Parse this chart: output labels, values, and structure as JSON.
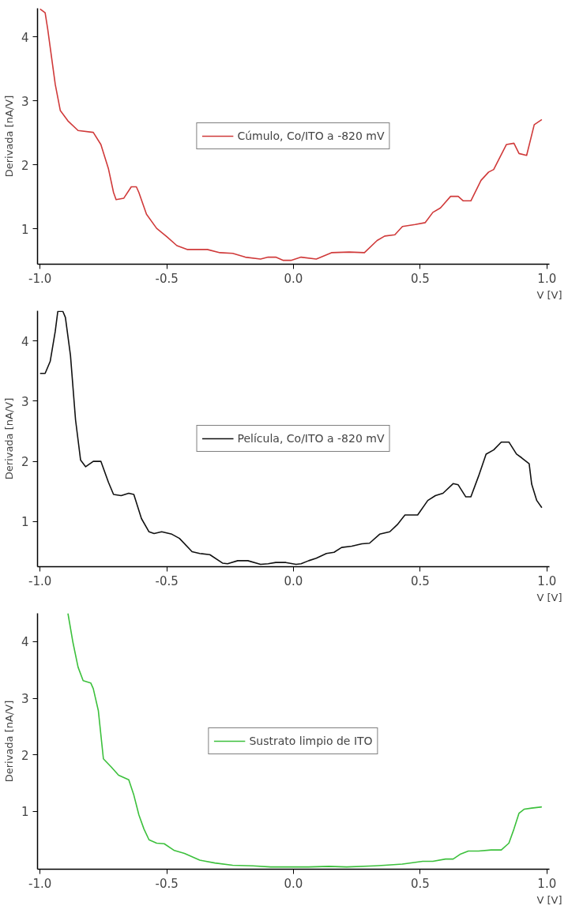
{
  "chart_data": [
    {
      "type": "line",
      "xlabel": "V [V]",
      "ylabel": "Derivada [nA/V]",
      "xlim": [
        -1.01,
        1.01
      ],
      "ylim": [
        0.45,
        4.45
      ],
      "xticks": [
        {
          "value": -1,
          "label": "-1.0"
        },
        {
          "value": -0.5,
          "label": "-0.5"
        },
        {
          "value": 0,
          "label": "0.0"
        },
        {
          "value": 0.5,
          "label": "0.5"
        },
        {
          "value": 1,
          "label": "1.0"
        }
      ],
      "yticks": [
        1,
        2,
        3,
        4
      ],
      "legend": "center",
      "series": [
        {
          "name": "Cúmulo, Co/ITO a -820 mV",
          "color": "#d03a3a",
          "x": [
            -1.0,
            -0.98,
            -0.97,
            -0.94,
            -0.92,
            -0.89,
            -0.85,
            -0.79,
            -0.76,
            -0.73,
            -0.71,
            -0.7,
            -0.67,
            -0.64,
            -0.62,
            -0.61,
            -0.58,
            -0.54,
            -0.5,
            -0.46,
            -0.42,
            -0.34,
            -0.29,
            -0.24,
            -0.19,
            -0.13,
            -0.1,
            -0.07,
            -0.04,
            -0.01,
            0.03,
            0.09,
            0.15,
            0.22,
            0.28,
            0.33,
            0.36,
            0.4,
            0.43,
            0.48,
            0.52,
            0.55,
            0.58,
            0.62,
            0.65,
            0.67,
            0.7,
            0.74,
            0.77,
            0.79,
            0.84,
            0.87,
            0.89,
            0.92,
            0.95,
            0.98
          ],
          "values": [
            4.44,
            4.38,
            4.13,
            3.26,
            2.85,
            2.69,
            2.54,
            2.51,
            2.32,
            1.94,
            1.57,
            1.46,
            1.48,
            1.66,
            1.66,
            1.57,
            1.23,
            1.01,
            0.88,
            0.74,
            0.68,
            0.68,
            0.63,
            0.62,
            0.56,
            0.53,
            0.56,
            0.56,
            0.51,
            0.51,
            0.56,
            0.53,
            0.63,
            0.64,
            0.63,
            0.82,
            0.89,
            0.91,
            1.04,
            1.07,
            1.1,
            1.26,
            1.33,
            1.51,
            1.51,
            1.44,
            1.44,
            1.76,
            1.89,
            1.93,
            2.32,
            2.34,
            2.18,
            2.15,
            2.63,
            2.71
          ]
        }
      ]
    },
    {
      "type": "line",
      "xlabel": "V [V]",
      "ylabel": "Derivada [nA/V]",
      "xlim": [
        -1.01,
        1.01
      ],
      "ylim": [
        0.25,
        4.5
      ],
      "xticks": [
        {
          "value": -1,
          "label": "-1.0"
        },
        {
          "value": -0.5,
          "label": "-0.5"
        },
        {
          "value": 0,
          "label": "0.0"
        },
        {
          "value": 0.5,
          "label": "0.5"
        },
        {
          "value": 1,
          "label": "1.0"
        }
      ],
      "yticks": [
        1,
        2,
        3,
        4
      ],
      "legend": "center",
      "series": [
        {
          "name": "Película, Co/ITO a -820 mV",
          "color": "#111111",
          "x": [
            -1.0,
            -0.98,
            -0.96,
            -0.94,
            -0.93,
            -0.91,
            -0.9,
            -0.88,
            -0.86,
            -0.84,
            -0.82,
            -0.79,
            -0.76,
            -0.73,
            -0.71,
            -0.68,
            -0.65,
            -0.63,
            -0.6,
            -0.57,
            -0.55,
            -0.52,
            -0.48,
            -0.45,
            -0.4,
            -0.37,
            -0.33,
            -0.28,
            -0.26,
            -0.22,
            -0.18,
            -0.13,
            -0.1,
            -0.07,
            -0.03,
            0.01,
            0.03,
            0.06,
            0.09,
            0.13,
            0.16,
            0.19,
            0.23,
            0.27,
            0.3,
            0.34,
            0.38,
            0.41,
            0.44,
            0.49,
            0.53,
            0.56,
            0.59,
            0.63,
            0.65,
            0.68,
            0.7,
            0.73,
            0.76,
            0.79,
            0.82,
            0.85,
            0.88,
            0.9,
            0.93,
            0.94,
            0.96,
            0.98
          ],
          "values": [
            3.46,
            3.46,
            3.66,
            4.16,
            4.49,
            4.49,
            4.39,
            3.76,
            2.69,
            2.02,
            1.91,
            2.0,
            2.0,
            1.65,
            1.45,
            1.43,
            1.47,
            1.45,
            1.05,
            0.83,
            0.8,
            0.83,
            0.79,
            0.72,
            0.5,
            0.47,
            0.45,
            0.31,
            0.3,
            0.35,
            0.35,
            0.29,
            0.3,
            0.32,
            0.32,
            0.29,
            0.3,
            0.35,
            0.39,
            0.47,
            0.49,
            0.57,
            0.59,
            0.63,
            0.64,
            0.79,
            0.83,
            0.95,
            1.11,
            1.11,
            1.35,
            1.43,
            1.47,
            1.63,
            1.61,
            1.41,
            1.41,
            1.75,
            2.12,
            2.19,
            2.32,
            2.32,
            2.12,
            2.06,
            1.96,
            1.62,
            1.35,
            1.23
          ]
        }
      ]
    },
    {
      "type": "line",
      "xlabel": "V [V]",
      "ylabel": "Derivada [nA/V]",
      "xlim": [
        -1.01,
        1.01
      ],
      "ylim": [
        -0.02,
        4.5
      ],
      "xticks": [
        {
          "value": -1,
          "label": "-1.0"
        },
        {
          "value": -0.5,
          "label": "-0.5"
        },
        {
          "value": 0,
          "label": "0.0"
        },
        {
          "value": 0.5,
          "label": "0.5"
        },
        {
          "value": 1,
          "label": "1.0"
        }
      ],
      "yticks": [
        1,
        2,
        3,
        4
      ],
      "legend": "center",
      "series": [
        {
          "name": "Sustrato limpio de ITO",
          "color": "#3cc03c",
          "x": [
            -0.89,
            -0.87,
            -0.85,
            -0.83,
            -0.8,
            -0.79,
            -0.77,
            -0.75,
            -0.72,
            -0.69,
            -0.65,
            -0.63,
            -0.61,
            -0.59,
            -0.57,
            -0.54,
            -0.51,
            -0.47,
            -0.43,
            -0.37,
            -0.31,
            -0.24,
            -0.16,
            -0.09,
            0.06,
            0.14,
            0.21,
            0.32,
            0.36,
            0.43,
            0.51,
            0.55,
            0.6,
            0.63,
            0.66,
            0.69,
            0.73,
            0.78,
            0.82,
            0.85,
            0.87,
            0.89,
            0.91,
            0.94,
            0.98
          ],
          "values": [
            4.5,
            3.98,
            3.55,
            3.31,
            3.27,
            3.17,
            2.78,
            1.93,
            1.79,
            1.64,
            1.56,
            1.29,
            0.94,
            0.69,
            0.5,
            0.44,
            0.43,
            0.31,
            0.26,
            0.14,
            0.09,
            0.05,
            0.04,
            0.02,
            0.02,
            0.03,
            0.02,
            0.04,
            0.05,
            0.07,
            0.12,
            0.12,
            0.16,
            0.16,
            0.25,
            0.3,
            0.3,
            0.32,
            0.32,
            0.44,
            0.69,
            0.97,
            1.04,
            1.06,
            1.08
          ]
        }
      ]
    }
  ]
}
